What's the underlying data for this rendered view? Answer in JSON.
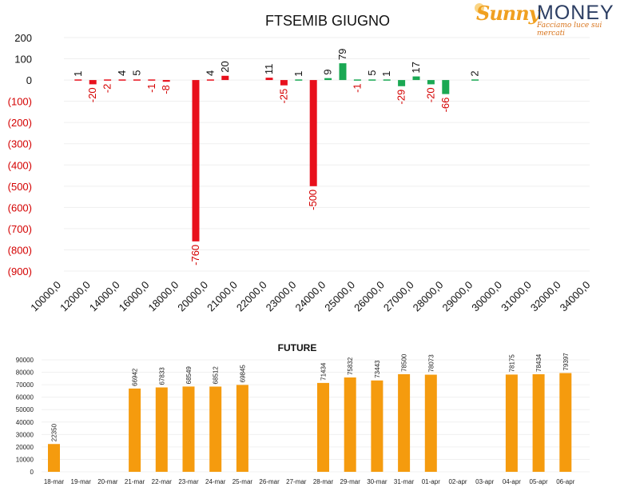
{
  "logo": {
    "brand_a": "Sunny",
    "brand_b": "MONEY",
    "tagline": "Facciamo luce sui mercati"
  },
  "colors": {
    "positive": "#1aa853",
    "negative": "#e8101c",
    "future_bar": "#f59b0e",
    "axis_negative_label": "#d40000"
  },
  "chart_data": [
    {
      "type": "bar",
      "title": "FTSEMIB GIUGNO",
      "categories": [
        "10000,0",
        "12000,0",
        "14000,0",
        "16000,0",
        "18000,0",
        "20000,0",
        "21000,0",
        "22000,0",
        "23000,0",
        "24000,0",
        "25000,0",
        "26000,0",
        "27000,0",
        "28000,0",
        "29000,0",
        "30000,0",
        "31000,0",
        "32000,0",
        "34000,0"
      ],
      "ylim": [
        -900,
        200
      ],
      "yticks": [
        "200",
        "100",
        "0",
        "(100)",
        "(200)",
        "(300)",
        "(400)",
        "(500)",
        "(600)",
        "(700)",
        "(800)",
        "(900)"
      ],
      "ytick_values": [
        200,
        100,
        0,
        -100,
        -200,
        -300,
        -400,
        -500,
        -600,
        -700,
        -800,
        -900
      ],
      "series": [
        {
          "points": [
            {
              "slot": 1.0,
              "value": 1,
              "color": "negative"
            },
            {
              "slot": 1.5,
              "value": -20,
              "color": "negative"
            },
            {
              "slot": 2.0,
              "value": -2,
              "color": "negative"
            },
            {
              "slot": 2.5,
              "value": 4,
              "color": "negative"
            },
            {
              "slot": 3.0,
              "value": 5,
              "color": "negative"
            },
            {
              "slot": 3.5,
              "value": -1,
              "color": "negative"
            },
            {
              "slot": 4.0,
              "value": -8,
              "color": "negative"
            },
            {
              "slot": 5.0,
              "value": -760,
              "color": "negative"
            },
            {
              "slot": 5.5,
              "value": 4,
              "color": "negative"
            },
            {
              "slot": 6.0,
              "value": 20,
              "color": "negative"
            },
            {
              "slot": 7.5,
              "value": 11,
              "color": "negative"
            },
            {
              "slot": 8.0,
              "value": -25,
              "color": "negative"
            },
            {
              "slot": 8.5,
              "value": 1,
              "color": "positive"
            },
            {
              "slot": 9.0,
              "value": -500,
              "color": "negative"
            },
            {
              "slot": 9.5,
              "value": 9,
              "color": "positive"
            },
            {
              "slot": 10.0,
              "value": 79,
              "color": "positive"
            },
            {
              "slot": 10.5,
              "value": -1,
              "color": "positive"
            },
            {
              "slot": 11.0,
              "value": 5,
              "color": "positive"
            },
            {
              "slot": 11.5,
              "value": 1,
              "color": "positive"
            },
            {
              "slot": 12.0,
              "value": -29,
              "color": "positive"
            },
            {
              "slot": 12.5,
              "value": 17,
              "color": "positive"
            },
            {
              "slot": 13.0,
              "value": -20,
              "color": "positive"
            },
            {
              "slot": 13.5,
              "value": -66,
              "color": "positive"
            },
            {
              "slot": 14.5,
              "value": 2,
              "color": "positive"
            }
          ]
        }
      ]
    },
    {
      "type": "bar",
      "title": "FUTURE",
      "categories": [
        "18-mar",
        "19-mar",
        "20-mar",
        "21-mar",
        "22-mar",
        "23-mar",
        "24-mar",
        "25-mar",
        "26-mar",
        "27-mar",
        "28-mar",
        "29-mar",
        "30-mar",
        "31-mar",
        "01-apr",
        "02-apr",
        "03-apr",
        "04-apr",
        "05-apr",
        "06-apr"
      ],
      "values": [
        22350,
        null,
        null,
        66942,
        67833,
        68549,
        68512,
        69845,
        null,
        null,
        71434,
        75832,
        73443,
        78500,
        78073,
        null,
        null,
        78175,
        78434,
        79397
      ],
      "ylim": [
        0,
        90000
      ],
      "yticks": [
        "90000",
        "80000",
        "70000",
        "60000",
        "50000",
        "40000",
        "30000",
        "20000",
        "10000",
        "0"
      ],
      "ytick_values": [
        90000,
        80000,
        70000,
        60000,
        50000,
        40000,
        30000,
        20000,
        10000,
        0
      ]
    }
  ]
}
